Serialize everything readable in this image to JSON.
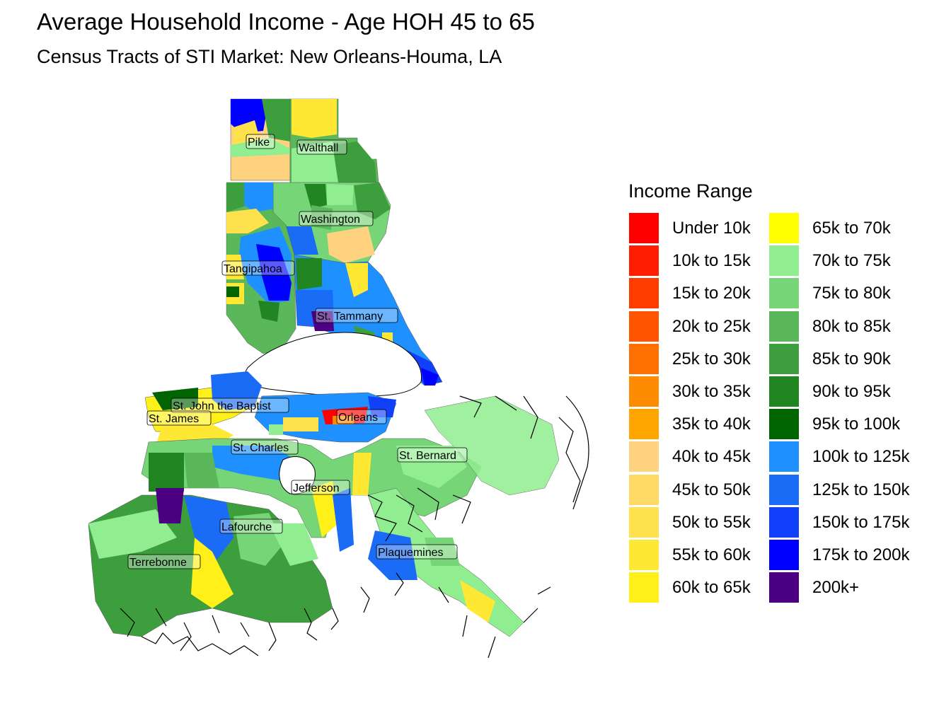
{
  "title": "Average Household Income - Age HOH 45 to 65",
  "subtitle": "Census Tracts of STI Market: New Orleans-Houma, LA",
  "legend": {
    "title": "Income Range",
    "columns": [
      [
        {
          "label": "Under 10k",
          "color": "#FF0000"
        },
        {
          "label": "10k to 15k",
          "color": "#FF1E00"
        },
        {
          "label": "15k to 20k",
          "color": "#FF3C00"
        },
        {
          "label": "20k to 25k",
          "color": "#FF5500"
        },
        {
          "label": "25k to 30k",
          "color": "#FF7000"
        },
        {
          "label": "30k to 35k",
          "color": "#FF8C00"
        },
        {
          "label": "35k to 40k",
          "color": "#FFA500"
        },
        {
          "label": "40k to 45k",
          "color": "#FFD27F"
        },
        {
          "label": "45k to 50k",
          "color": "#FFD966"
        },
        {
          "label": "50k to 55k",
          "color": "#FFE14D"
        },
        {
          "label": "55k to 60k",
          "color": "#FFE833"
        },
        {
          "label": "60k to 65k",
          "color": "#FFF01A"
        }
      ],
      [
        {
          "label": "65k to 70k",
          "color": "#FFFF00"
        },
        {
          "label": "70k to 75k",
          "color": "#90EE90"
        },
        {
          "label": "75k to 80k",
          "color": "#76D576"
        },
        {
          "label": "80k to 85k",
          "color": "#5AB85A"
        },
        {
          "label": "85k to 90k",
          "color": "#3C9E3C"
        },
        {
          "label": "90k to 95k",
          "color": "#218521"
        },
        {
          "label": "95k to 100k",
          "color": "#006400"
        },
        {
          "label": "100k to 125k",
          "color": "#1E90FF"
        },
        {
          "label": "125k to 150k",
          "color": "#1A6BF5"
        },
        {
          "label": "150k to 175k",
          "color": "#1040FA"
        },
        {
          "label": "175k to 200k",
          "color": "#0000FF"
        },
        {
          "label": "200k+",
          "color": "#4B0082"
        }
      ]
    ]
  },
  "parishes": [
    {
      "name": "Pike"
    },
    {
      "name": "Walthall"
    },
    {
      "name": "Washington"
    },
    {
      "name": "Tangipahoa"
    },
    {
      "name": "St. Tammany"
    },
    {
      "name": "St. John the Baptist"
    },
    {
      "name": "St. James"
    },
    {
      "name": "Orleans"
    },
    {
      "name": "St. Charles"
    },
    {
      "name": "St. Bernard"
    },
    {
      "name": "Jefferson"
    },
    {
      "name": "Lafourche"
    },
    {
      "name": "Plaquemines"
    },
    {
      "name": "Terrebonne"
    }
  ]
}
